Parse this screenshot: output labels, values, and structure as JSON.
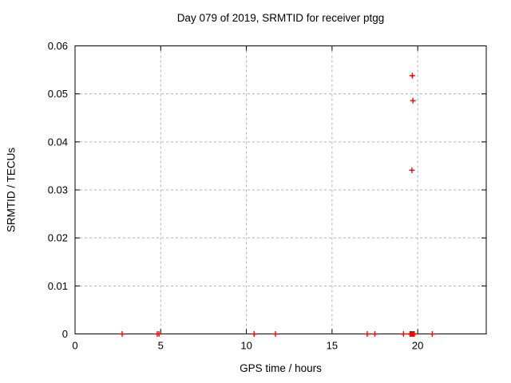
{
  "page": {
    "background": "#ffffff"
  },
  "chart_data": {
    "type": "scatter",
    "title": "Day 079 of 2019, SRMTID for receiver ptgg",
    "xlabel": "GPS time / hours",
    "ylabel": "SRMTID / TECUs",
    "xlim": [
      0,
      24
    ],
    "ylim": [
      0,
      0.06
    ],
    "xticks": [
      {
        "value": 0,
        "label": "0"
      },
      {
        "value": 5,
        "label": "5"
      },
      {
        "value": 10,
        "label": "10"
      },
      {
        "value": 15,
        "label": "15"
      },
      {
        "value": 20,
        "label": "20"
      }
    ],
    "yticks": [
      {
        "value": 0,
        "label": "0"
      },
      {
        "value": 0.01,
        "label": "0.01"
      },
      {
        "value": 0.02,
        "label": "0.02"
      },
      {
        "value": 0.03,
        "label": "0.03"
      },
      {
        "value": 0.04,
        "label": "0.04"
      },
      {
        "value": 0.05,
        "label": "0.05"
      },
      {
        "value": 0.06,
        "label": "0.06"
      }
    ],
    "grid": true,
    "legend_position": "none",
    "border_color": "#000000",
    "grid_color": "#b3b3b3",
    "series": [
      {
        "name": "SRMTID",
        "marker": "plus",
        "color": "#ff0000",
        "points": [
          [
            2.75,
            0
          ],
          [
            4.8,
            0
          ],
          [
            4.9,
            0
          ],
          [
            10.45,
            0
          ],
          [
            11.7,
            0
          ],
          [
            17.05,
            0
          ],
          [
            17.5,
            0
          ],
          [
            19.17,
            0
          ],
          [
            19.55,
            0
          ],
          [
            19.6,
            0
          ],
          [
            19.65,
            0
          ],
          [
            19.7,
            0
          ],
          [
            19.75,
            0
          ],
          [
            19.8,
            0
          ],
          [
            20.85,
            0
          ],
          [
            19.66,
            0.0341
          ],
          [
            19.72,
            0.0486
          ],
          [
            19.68,
            0.0538
          ]
        ]
      }
    ]
  }
}
